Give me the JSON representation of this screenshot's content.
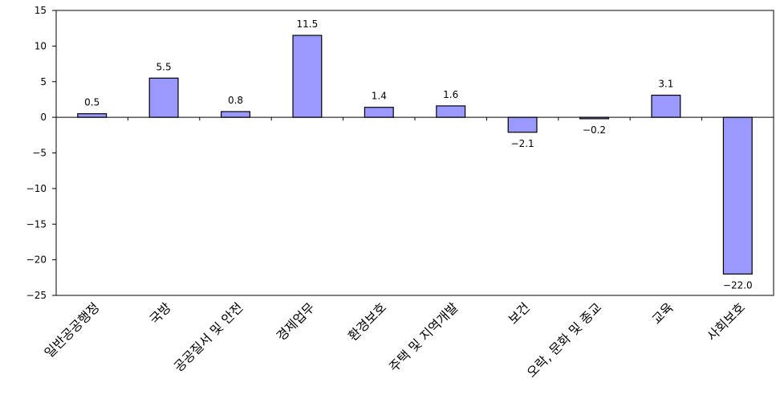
{
  "chart_data": {
    "type": "bar",
    "categories": [
      "일반공공행정",
      "국방",
      "공공질서 및 안전",
      "경제업무",
      "환경보호",
      "주택 및 지역개발",
      "보건",
      "오락, 문화 및 종교",
      "교육",
      "사회보호"
    ],
    "values": [
      0.5,
      5.5,
      0.8,
      11.5,
      1.4,
      1.6,
      -2.1,
      -0.2,
      3.1,
      -22.0
    ],
    "data_labels": [
      "0.5",
      "5.5",
      "0.8",
      "11.5",
      "1.4",
      "1.6",
      "-2.1",
      "-0.2",
      "3.1",
      "-22.0"
    ],
    "ylim": [
      -25,
      15
    ],
    "yticks": [
      15,
      10,
      5,
      0,
      -5,
      -10,
      -15,
      -20,
      -25
    ],
    "ytick_labels": [
      "15",
      "10",
      "5",
      "0",
      "-5",
      "-10",
      "-15",
      "-20",
      "-25"
    ],
    "bar_color": "#9999ff",
    "title": "",
    "xlabel": "",
    "ylabel": "",
    "grid": false,
    "legend": "none"
  }
}
